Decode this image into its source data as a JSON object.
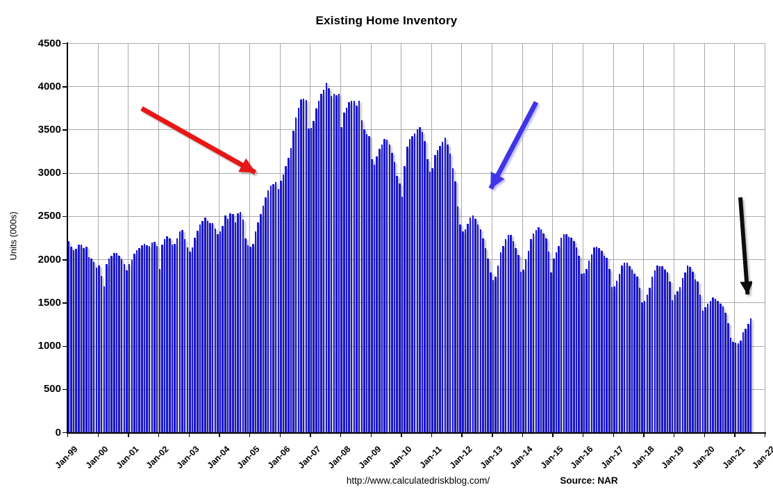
{
  "chart_data": {
    "type": "bar",
    "title": "Existing Home Inventory",
    "ylabel": "Units (000s)",
    "ylim": [
      0,
      4500
    ],
    "ytick_step": 500,
    "y_ticks": [
      0,
      500,
      1000,
      1500,
      2000,
      2500,
      3000,
      3500,
      4000,
      4500
    ],
    "x_tick_labels": [
      "Jan-99",
      "Jan-00",
      "Jan-01",
      "Jan-02",
      "Jan-03",
      "Jan-04",
      "Jan-05",
      "Jan-06",
      "Jan-07",
      "Jan-08",
      "Jan-09",
      "Jan-10",
      "Jan-11",
      "Jan-12",
      "Jan-13",
      "Jan-14",
      "Jan-15",
      "Jan-16",
      "Jan-17",
      "Jan-18",
      "Jan-19",
      "Jan-20",
      "Jan-21",
      "Jan-22"
    ],
    "start_month": "Jan-1999",
    "end_month": "Jul-2021",
    "x_domain_months": 276,
    "grid": true,
    "legend": "none",
    "bar_color": "#1a16d2",
    "grid_color": "#a9a9a9",
    "values": [
      2210,
      2145,
      2105,
      2120,
      2170,
      2170,
      2130,
      2145,
      2025,
      2010,
      1970,
      1905,
      1930,
      1810,
      1690,
      1945,
      2010,
      2040,
      2070,
      2070,
      2040,
      2000,
      1945,
      1875,
      1945,
      1990,
      2065,
      2105,
      2130,
      2165,
      2180,
      2165,
      2155,
      2190,
      2200,
      2155,
      1890,
      2170,
      2230,
      2270,
      2240,
      2170,
      2180,
      2240,
      2320,
      2335,
      2230,
      2135,
      2090,
      2135,
      2250,
      2330,
      2400,
      2440,
      2480,
      2445,
      2420,
      2420,
      2355,
      2290,
      2320,
      2390,
      2510,
      2465,
      2535,
      2520,
      2430,
      2535,
      2550,
      2455,
      2245,
      2160,
      2145,
      2175,
      2320,
      2430,
      2520,
      2620,
      2720,
      2800,
      2850,
      2870,
      2890,
      2810,
      2905,
      2985,
      3080,
      3175,
      3285,
      3490,
      3640,
      3750,
      3850,
      3860,
      3840,
      3510,
      3520,
      3600,
      3745,
      3835,
      3910,
      3960,
      4040,
      3980,
      3890,
      3910,
      3900,
      3915,
      3530,
      3700,
      3755,
      3820,
      3835,
      3830,
      3780,
      3830,
      3610,
      3500,
      3450,
      3420,
      3160,
      3095,
      3190,
      3280,
      3330,
      3395,
      3380,
      3330,
      3230,
      3125,
      2965,
      2880,
      2725,
      3075,
      3300,
      3395,
      3425,
      3455,
      3500,
      3530,
      3470,
      3370,
      3155,
      3015,
      3050,
      3210,
      3260,
      3310,
      3360,
      3410,
      3330,
      3220,
      3050,
      2900,
      2615,
      2400,
      2320,
      2350,
      2410,
      2480,
      2505,
      2470,
      2400,
      2345,
      2245,
      2130,
      2010,
      1850,
      1760,
      1800,
      1930,
      2080,
      2150,
      2230,
      2280,
      2280,
      2210,
      2130,
      2050,
      1860,
      1880,
      2000,
      2100,
      2230,
      2300,
      2340,
      2370,
      2350,
      2300,
      2240,
      2090,
      1850,
      2010,
      2080,
      2150,
      2250,
      2290,
      2290,
      2260,
      2250,
      2210,
      2140,
      2040,
      1830,
      1840,
      1890,
      1985,
      2060,
      2140,
      2145,
      2130,
      2100,
      2045,
      2020,
      1890,
      1680,
      1690,
      1750,
      1830,
      1930,
      1960,
      1960,
      1920,
      1880,
      1830,
      1800,
      1670,
      1500,
      1520,
      1590,
      1670,
      1800,
      1870,
      1930,
      1920,
      1920,
      1880,
      1850,
      1740,
      1530,
      1590,
      1630,
      1680,
      1785,
      1850,
      1930,
      1915,
      1860,
      1770,
      1745,
      1590,
      1405,
      1450,
      1490,
      1520,
      1560,
      1545,
      1520,
      1490,
      1455,
      1385,
      1265,
      1090,
      1045,
      1035,
      1030,
      1060,
      1155,
      1200,
      1250,
      1320
    ],
    "annotations": [
      {
        "name": "red-arrow",
        "color": "#e81212",
        "shadow": "#9c9c9c",
        "from": [
          204,
          156
        ],
        "to": [
          376,
          253
        ],
        "stroke": 7
      },
      {
        "name": "blue-arrow",
        "color": "#3f36e6",
        "shadow": "#a9a9f7",
        "from": [
          772,
          147
        ],
        "to": [
          702,
          280
        ],
        "stroke": 7
      },
      {
        "name": "black-arrow",
        "color": "#101010",
        "shadow": "#b0b0b0",
        "from": [
          1066,
          284
        ],
        "to": [
          1077,
          432
        ],
        "stroke": 6
      }
    ],
    "footer": {
      "url": "http://www.calculatedriskblog.com/",
      "source": "Source: NAR"
    }
  },
  "layout_note": "monthly bar chart, Jan-99 through Jul-21"
}
